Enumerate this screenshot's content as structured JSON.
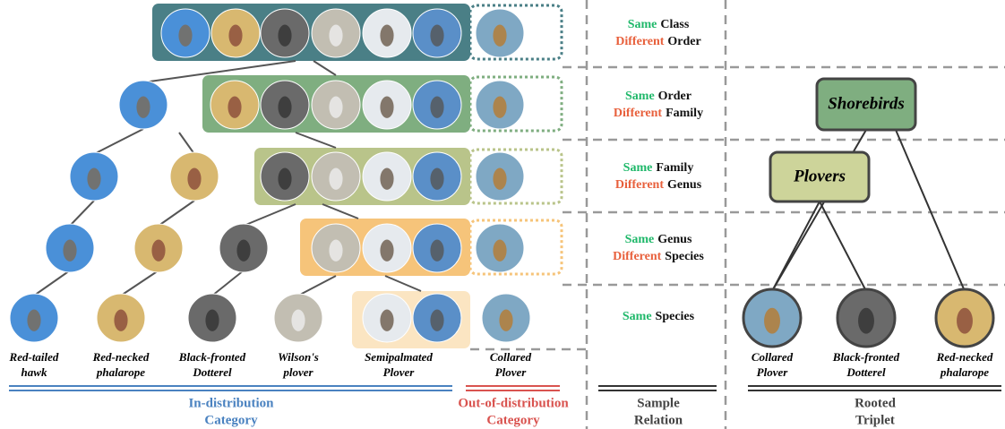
{
  "relations": [
    {
      "same": "Same",
      "same_level": "Class",
      "different": "Different",
      "different_level": "Order"
    },
    {
      "same": "Same",
      "same_level": "Order",
      "different": "Different",
      "different_level": "Family"
    },
    {
      "same": "Same",
      "same_level": "Family",
      "different": "Different",
      "different_level": "Genus"
    },
    {
      "same": "Same",
      "same_level": "Genus",
      "different": "Different",
      "different_level": "Species"
    },
    {
      "same": "Same",
      "same_level": "Species"
    }
  ],
  "left_labels": [
    [
      "Red-tailed",
      "hawk"
    ],
    [
      "Red-necked",
      "phalarope"
    ],
    [
      "Black-fronted",
      "Dotterel"
    ],
    [
      "Wilson's",
      "plover"
    ],
    [
      "Semipalmated",
      "Plover"
    ],
    [
      "Collared",
      "Plover"
    ]
  ],
  "tree": {
    "root": "Shorebirds",
    "inner": "Plovers",
    "leaves": [
      [
        "Collared",
        "Plover"
      ],
      [
        "Black-fronted",
        "Dotterel"
      ],
      [
        "Red-necked",
        "phalarope"
      ]
    ]
  },
  "footer": {
    "in_distribution": [
      "In-distribution",
      "Category"
    ],
    "out_of_distribution": [
      "Out-of-distribution",
      "Category"
    ],
    "sample_relation": [
      "Sample",
      "Relation"
    ],
    "rooted_triplet": [
      "Rooted",
      "Triplet"
    ]
  }
}
